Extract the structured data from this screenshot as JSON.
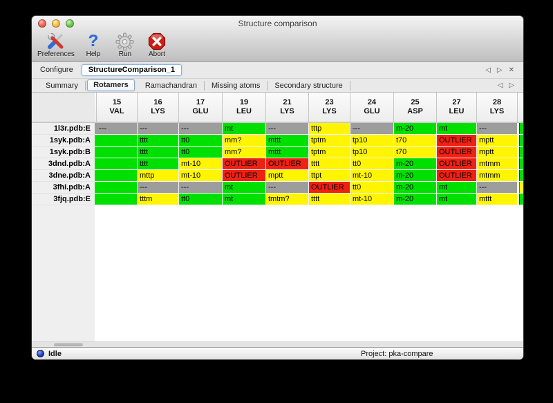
{
  "window": {
    "title": "Structure comparison"
  },
  "toolbar": {
    "items": [
      {
        "id": "preferences",
        "label": "Preferences",
        "icon": "preferences-tools-icon"
      },
      {
        "id": "help",
        "label": "Help",
        "icon": "help-question-icon"
      },
      {
        "id": "run",
        "label": "Run",
        "icon": "run-gear-icon"
      },
      {
        "id": "abort",
        "label": "Abort",
        "icon": "abort-stop-icon"
      }
    ]
  },
  "configure": {
    "label": "Configure",
    "value": "StructureComparison_1"
  },
  "pager": {
    "back": "◁",
    "forward": "▷",
    "close": "✕"
  },
  "tabs": {
    "items": [
      {
        "label": "Summary",
        "selected": false
      },
      {
        "label": "Rotamers",
        "selected": true
      },
      {
        "label": "Ramachandran",
        "selected": false
      },
      {
        "label": "Missing atoms",
        "selected": false
      },
      {
        "label": "Secondary structure",
        "selected": false
      }
    ]
  },
  "legend_colors": {
    "ok": "#00e000",
    "warn": "#fff500",
    "outlier": "#f02012",
    "missing": "#9d9d9d"
  },
  "table": {
    "columns": [
      {
        "num": "15",
        "res": "VAL"
      },
      {
        "num": "16",
        "res": "LYS"
      },
      {
        "num": "17",
        "res": "GLU"
      },
      {
        "num": "19",
        "res": "LEU"
      },
      {
        "num": "21",
        "res": "LYS"
      },
      {
        "num": "23",
        "res": "LYS"
      },
      {
        "num": "24",
        "res": "GLU"
      },
      {
        "num": "25",
        "res": "ASP"
      },
      {
        "num": "27",
        "res": "LEU"
      },
      {
        "num": "28",
        "res": "LYS"
      }
    ],
    "rows": [
      {
        "label": "1l3r.pdb:E",
        "clip_left": "missing",
        "cells": [
          [
            "---",
            "missing"
          ],
          [
            "---",
            "missing"
          ],
          [
            "---",
            "missing"
          ],
          [
            "mt",
            "ok"
          ],
          [
            "---",
            "missing"
          ],
          [
            "tttp",
            "warn"
          ],
          [
            "---",
            "missing"
          ],
          [
            "m-20",
            "ok"
          ],
          [
            "mt",
            "ok"
          ],
          [
            "---",
            "missing"
          ]
        ],
        "clip_right": "ok"
      },
      {
        "label": "1syk.pdb:A",
        "clip_left": "ok",
        "cells": [
          [
            "",
            "ok"
          ],
          [
            "tttt",
            "ok"
          ],
          [
            "tt0",
            "ok"
          ],
          [
            "mm?",
            "warn"
          ],
          [
            "mttt",
            "ok"
          ],
          [
            "tptm",
            "warn"
          ],
          [
            "tp10",
            "warn"
          ],
          [
            "t70",
            "warn"
          ],
          [
            "OUTLIER",
            "outlier"
          ],
          [
            "mptt",
            "warn"
          ]
        ],
        "clip_right": "ok"
      },
      {
        "label": "1syk.pdb:B",
        "clip_left": "ok",
        "cells": [
          [
            "",
            "ok"
          ],
          [
            "tttt",
            "ok"
          ],
          [
            "tt0",
            "ok"
          ],
          [
            "mm?",
            "warn"
          ],
          [
            "mttt",
            "ok"
          ],
          [
            "tptm",
            "warn"
          ],
          [
            "tp10",
            "warn"
          ],
          [
            "t70",
            "warn"
          ],
          [
            "OUTLIER",
            "outlier"
          ],
          [
            "mptt",
            "warn"
          ]
        ],
        "clip_right": "ok"
      },
      {
        "label": "3dnd.pdb:A",
        "clip_left": "ok",
        "cells": [
          [
            "",
            "ok"
          ],
          [
            "tttt",
            "ok"
          ],
          [
            "mt-10",
            "warn"
          ],
          [
            "OUTLIER",
            "outlier"
          ],
          [
            "OUTLIER",
            "outlier"
          ],
          [
            "tttt",
            "warn"
          ],
          [
            "tt0",
            "warn"
          ],
          [
            "m-20",
            "ok"
          ],
          [
            "OUTLIER",
            "outlier"
          ],
          [
            "mtmm",
            "warn"
          ]
        ],
        "clip_right": "ok"
      },
      {
        "label": "3dne.pdb:A",
        "clip_left": "ok",
        "cells": [
          [
            "",
            "ok"
          ],
          [
            "mttp",
            "warn"
          ],
          [
            "mt-10",
            "warn"
          ],
          [
            "OUTLIER",
            "outlier"
          ],
          [
            "mptt",
            "warn"
          ],
          [
            "ttpt",
            "warn"
          ],
          [
            "mt-10",
            "warn"
          ],
          [
            "m-20",
            "ok"
          ],
          [
            "OUTLIER",
            "outlier"
          ],
          [
            "mtmm",
            "warn"
          ]
        ],
        "clip_right": "ok"
      },
      {
        "label": "3fhi.pdb:A",
        "clip_left": "ok",
        "cells": [
          [
            "",
            "ok"
          ],
          [
            "---",
            "missing"
          ],
          [
            "---",
            "missing"
          ],
          [
            "mt",
            "ok"
          ],
          [
            "---",
            "missing"
          ],
          [
            "OUTLIER",
            "outlier"
          ],
          [
            "tt0",
            "warn"
          ],
          [
            "m-20",
            "ok"
          ],
          [
            "mt",
            "ok"
          ],
          [
            "---",
            "missing"
          ]
        ],
        "clip_right": "warn"
      },
      {
        "label": "3fjq.pdb:E",
        "clip_left": "ok",
        "cells": [
          [
            "",
            "ok"
          ],
          [
            "tttm",
            "warn"
          ],
          [
            "tt0",
            "ok"
          ],
          [
            "mt",
            "ok"
          ],
          [
            "tmtm?",
            "warn"
          ],
          [
            "tttt",
            "warn"
          ],
          [
            "mt-10",
            "warn"
          ],
          [
            "m-20",
            "ok"
          ],
          [
            "mt",
            "ok"
          ],
          [
            "mttt",
            "warn"
          ]
        ],
        "clip_right": "ok"
      }
    ]
  },
  "statusbar": {
    "status": "Idle",
    "project": "Project: pka-compare"
  }
}
